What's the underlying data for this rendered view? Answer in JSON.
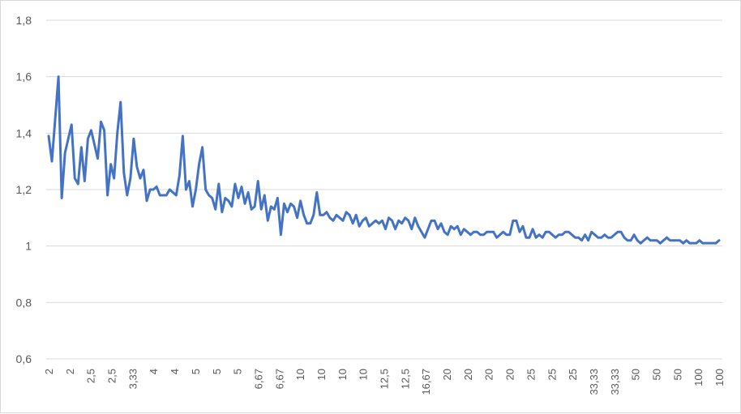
{
  "chart_data": {
    "type": "line",
    "title": "",
    "xlabel": "",
    "ylabel": "",
    "ylim": [
      0.6,
      1.8
    ],
    "yticks": [
      "0,6",
      "0,8",
      "1",
      "1,2",
      "1,4",
      "1,6",
      "1,8"
    ],
    "ytick_values": [
      0.6,
      0.8,
      1.0,
      1.2,
      1.4,
      1.6,
      1.8
    ],
    "xtick_labels": [
      "2",
      "2",
      "2,5",
      "2,5",
      "3,33",
      "4",
      "4",
      "5",
      "5",
      "5",
      "6,67",
      "6,67",
      "10",
      "10",
      "10",
      "10",
      "12,5",
      "12,5",
      "16,67",
      "20",
      "20",
      "20",
      "20",
      "25",
      "25",
      "25",
      "33,33",
      "33,33",
      "50",
      "50",
      "50",
      "100",
      "100"
    ],
    "grid": true,
    "legend": "none",
    "series": [
      {
        "color": "#4472c4",
        "values": [
          1.39,
          1.3,
          1.45,
          1.6,
          1.17,
          1.33,
          1.38,
          1.43,
          1.24,
          1.22,
          1.35,
          1.23,
          1.38,
          1.41,
          1.36,
          1.31,
          1.44,
          1.41,
          1.18,
          1.29,
          1.24,
          1.4,
          1.51,
          1.26,
          1.18,
          1.24,
          1.38,
          1.28,
          1.24,
          1.27,
          1.16,
          1.2,
          1.2,
          1.21,
          1.18,
          1.18,
          1.18,
          1.2,
          1.19,
          1.18,
          1.25,
          1.39,
          1.2,
          1.23,
          1.14,
          1.2,
          1.29,
          1.35,
          1.2,
          1.18,
          1.17,
          1.13,
          1.22,
          1.12,
          1.17,
          1.16,
          1.14,
          1.22,
          1.17,
          1.21,
          1.15,
          1.19,
          1.13,
          1.14,
          1.23,
          1.13,
          1.18,
          1.09,
          1.14,
          1.13,
          1.17,
          1.04,
          1.15,
          1.12,
          1.15,
          1.14,
          1.1,
          1.16,
          1.11,
          1.08,
          1.08,
          1.11,
          1.19,
          1.11,
          1.11,
          1.12,
          1.1,
          1.09,
          1.11,
          1.1,
          1.09,
          1.12,
          1.11,
          1.08,
          1.11,
          1.07,
          1.09,
          1.1,
          1.07,
          1.08,
          1.09,
          1.08,
          1.09,
          1.06,
          1.1,
          1.09,
          1.06,
          1.09,
          1.08,
          1.1,
          1.09,
          1.06,
          1.1,
          1.07,
          1.05,
          1.03,
          1.06,
          1.09,
          1.09,
          1.06,
          1.08,
          1.05,
          1.04,
          1.07,
          1.06,
          1.07,
          1.04,
          1.06,
          1.05,
          1.04,
          1.05,
          1.05,
          1.04,
          1.04,
          1.05,
          1.05,
          1.05,
          1.03,
          1.04,
          1.05,
          1.04,
          1.04,
          1.09,
          1.09,
          1.05,
          1.07,
          1.03,
          1.03,
          1.06,
          1.03,
          1.04,
          1.03,
          1.05,
          1.05,
          1.04,
          1.03,
          1.04,
          1.04,
          1.05,
          1.05,
          1.04,
          1.03,
          1.03,
          1.02,
          1.04,
          1.02,
          1.05,
          1.04,
          1.03,
          1.03,
          1.04,
          1.03,
          1.03,
          1.04,
          1.05,
          1.05,
          1.03,
          1.02,
          1.02,
          1.04,
          1.02,
          1.01,
          1.02,
          1.03,
          1.02,
          1.02,
          1.02,
          1.01,
          1.02,
          1.03,
          1.02,
          1.02,
          1.02,
          1.02,
          1.01,
          1.02,
          1.01,
          1.01,
          1.01,
          1.02,
          1.01,
          1.01,
          1.01,
          1.01,
          1.01,
          1.02
        ]
      }
    ]
  }
}
